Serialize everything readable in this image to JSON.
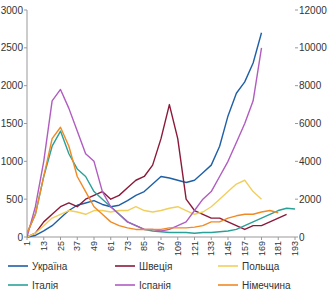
{
  "chart_data": {
    "type": "line",
    "x": [
      1,
      7,
      13,
      19,
      25,
      31,
      37,
      43,
      49,
      55,
      61,
      67,
      73,
      79,
      85,
      91,
      97,
      103,
      109,
      115,
      121,
      127,
      133,
      139,
      145,
      151,
      157,
      163,
      169,
      175,
      181,
      187,
      193
    ],
    "xlim": [
      1,
      193
    ],
    "xticks": [
      1,
      13,
      25,
      37,
      49,
      61,
      73,
      85,
      97,
      109,
      121,
      133,
      145,
      157,
      169,
      181,
      193
    ],
    "ylim": [
      0,
      3000
    ],
    "yticks": [
      0,
      500,
      1000,
      1500,
      2000,
      2500,
      3000
    ],
    "y2lim": [
      0,
      12000
    ],
    "y2ticks": [
      0,
      2000,
      4000,
      6000,
      8000,
      10000,
      12000
    ],
    "grid": false,
    "legend": "bottom",
    "series": [
      {
        "name": "Україна",
        "color": "#1f5fa6",
        "values": [
          0,
          20,
          80,
          150,
          250,
          350,
          420,
          450,
          480,
          430,
          400,
          420,
          480,
          550,
          600,
          700,
          800,
          780,
          750,
          720,
          750,
          850,
          950,
          1200,
          1600,
          1900,
          2050,
          2300,
          2700,
          null,
          null,
          null,
          null
        ]
      },
      {
        "name": "Швеція",
        "color": "#8b1a3a",
        "values": [
          0,
          50,
          200,
          300,
          400,
          450,
          400,
          500,
          550,
          600,
          500,
          550,
          650,
          750,
          800,
          950,
          1300,
          1750,
          1300,
          500,
          350,
          300,
          250,
          250,
          200,
          150,
          100,
          150,
          150,
          200,
          250,
          300,
          null
        ]
      },
      {
        "name": "Польща",
        "color": "#f2cf5b",
        "values": [
          0,
          50,
          150,
          250,
          300,
          350,
          330,
          300,
          350,
          350,
          330,
          350,
          350,
          400,
          350,
          330,
          350,
          380,
          400,
          350,
          300,
          330,
          400,
          500,
          600,
          700,
          750,
          600,
          500,
          null,
          null,
          null,
          null
        ]
      },
      {
        "name": "Італія",
        "color": "#2aa198",
        "axis": "y2",
        "values": [
          200,
          1200,
          3200,
          4800,
          5600,
          4400,
          3600,
          3200,
          2400,
          2000,
          1600,
          1200,
          800,
          600,
          400,
          320,
          280,
          240,
          240,
          240,
          200,
          240,
          240,
          280,
          320,
          400,
          600,
          800,
          1000,
          1200,
          1400,
          1520,
          1480
        ]
      },
      {
        "name": "Іспанія",
        "color": "#b05cc0",
        "axis": "y2",
        "values": [
          0,
          1600,
          4000,
          7200,
          7800,
          6800,
          5600,
          4400,
          4000,
          2400,
          1600,
          1200,
          800,
          600,
          400,
          400,
          320,
          400,
          600,
          800,
          1400,
          2000,
          2400,
          3200,
          4000,
          5000,
          6000,
          7200,
          10000,
          null,
          null,
          null,
          null
        ]
      },
      {
        "name": "Німеччина",
        "color": "#f08a24",
        "axis": "y2",
        "values": [
          200,
          1200,
          3200,
          5200,
          5800,
          4800,
          3200,
          2400,
          1600,
          1200,
          800,
          600,
          480,
          400,
          400,
          400,
          400,
          480,
          480,
          480,
          520,
          600,
          800,
          800,
          1000,
          1120,
          1200,
          1200,
          1320,
          1400,
          1280,
          null,
          null
        ]
      }
    ]
  }
}
